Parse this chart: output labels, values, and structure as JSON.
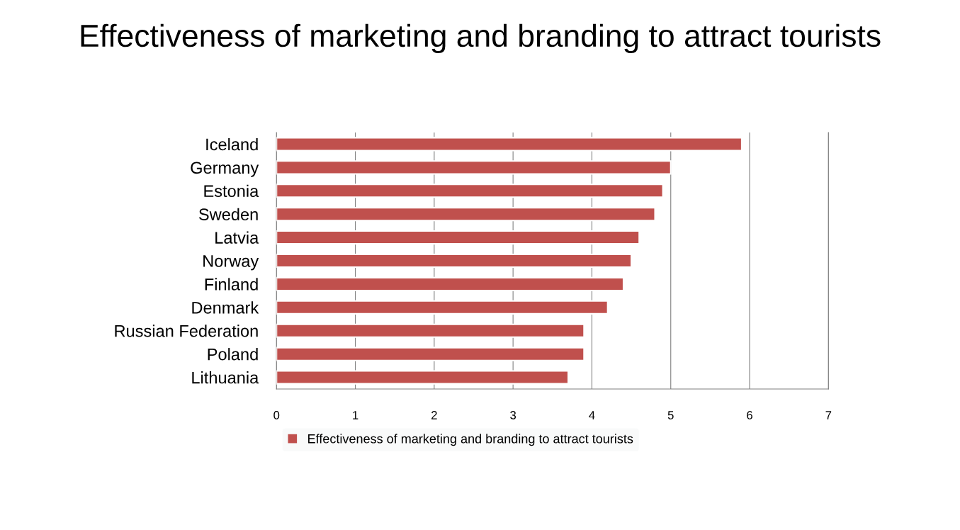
{
  "chart_data": {
    "type": "bar",
    "orientation": "horizontal",
    "title": "Effectiveness of marketing and branding to attract tourists",
    "categories": [
      "Iceland",
      "Germany",
      "Estonia",
      "Sweden",
      "Latvia",
      "Norway",
      "Finland",
      "Denmark",
      "Russian Federation",
      "Poland",
      "Lithuania"
    ],
    "series": [
      {
        "name": "Effectiveness of marketing and branding to attract tourists",
        "color": "#c0504d",
        "values": [
          5.9,
          5.0,
          4.9,
          4.8,
          4.6,
          4.5,
          4.4,
          4.2,
          3.9,
          3.9,
          3.7
        ]
      }
    ],
    "xlim": [
      0,
      7
    ],
    "xticks": [
      0,
      1,
      2,
      3,
      4,
      5,
      6,
      7
    ],
    "grid": "x",
    "legend": "bottom"
  }
}
